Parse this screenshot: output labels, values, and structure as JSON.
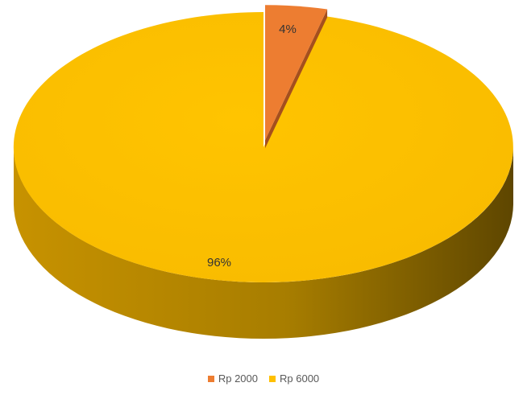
{
  "chart_data": {
    "type": "pie",
    "style": "3d-exploded",
    "categories": [
      "Rp 2000",
      "Rp 6000"
    ],
    "values": [
      4,
      96
    ],
    "data_labels": [
      "4%",
      "96%"
    ],
    "colors": [
      "#ED7D31",
      "#FFC000"
    ],
    "legend_position": "bottom"
  }
}
